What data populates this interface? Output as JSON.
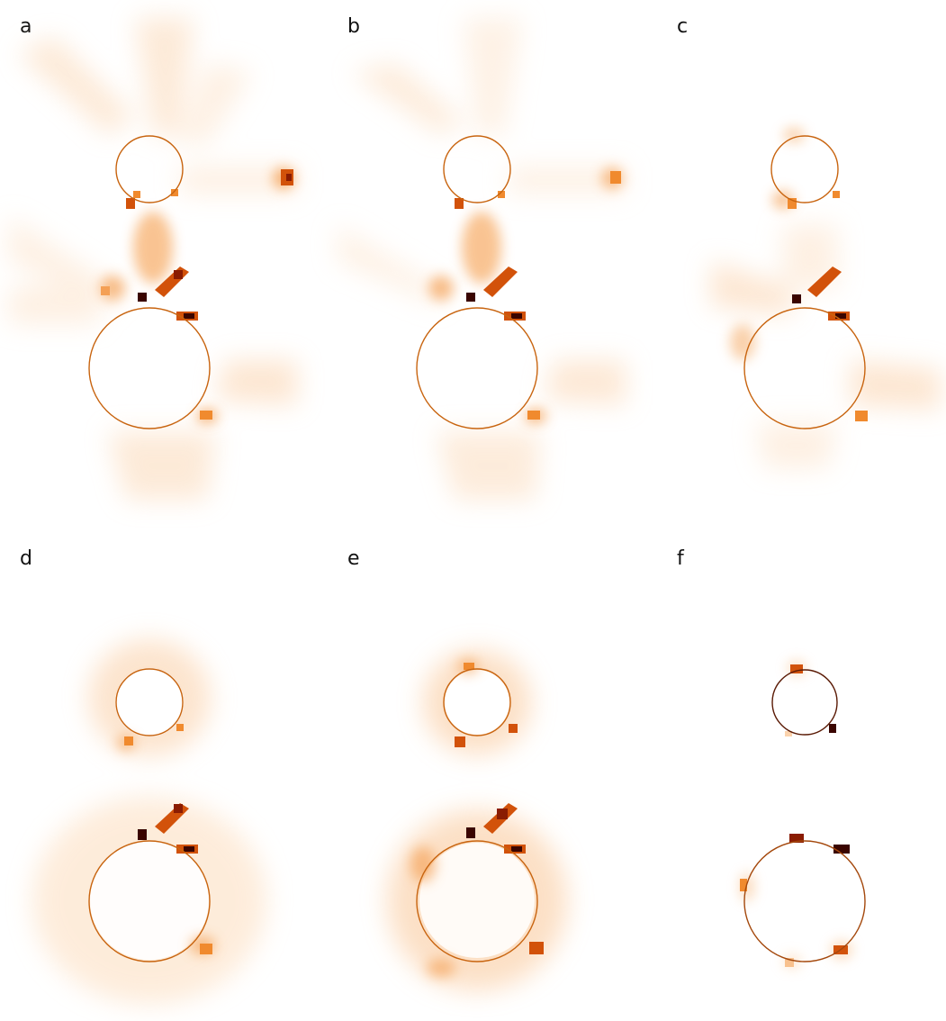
{
  "figure": {
    "panels": [
      {
        "label": "a",
        "circle_color": "#c8640f"
      },
      {
        "label": "b",
        "circle_color": "#c8640f"
      },
      {
        "label": "c",
        "circle_color": "#c8640f"
      },
      {
        "label": "d",
        "circle_color": "#c8640f"
      },
      {
        "label": "e",
        "circle_color": "#c8640f"
      },
      {
        "label": "f",
        "circle_color": "#c8640f"
      }
    ],
    "colormap": [
      "#ffffff",
      "#fde9d6",
      "#f9c08a",
      "#f08a2e",
      "#d2520a",
      "#8a1c02",
      "#3a0500"
    ]
  }
}
